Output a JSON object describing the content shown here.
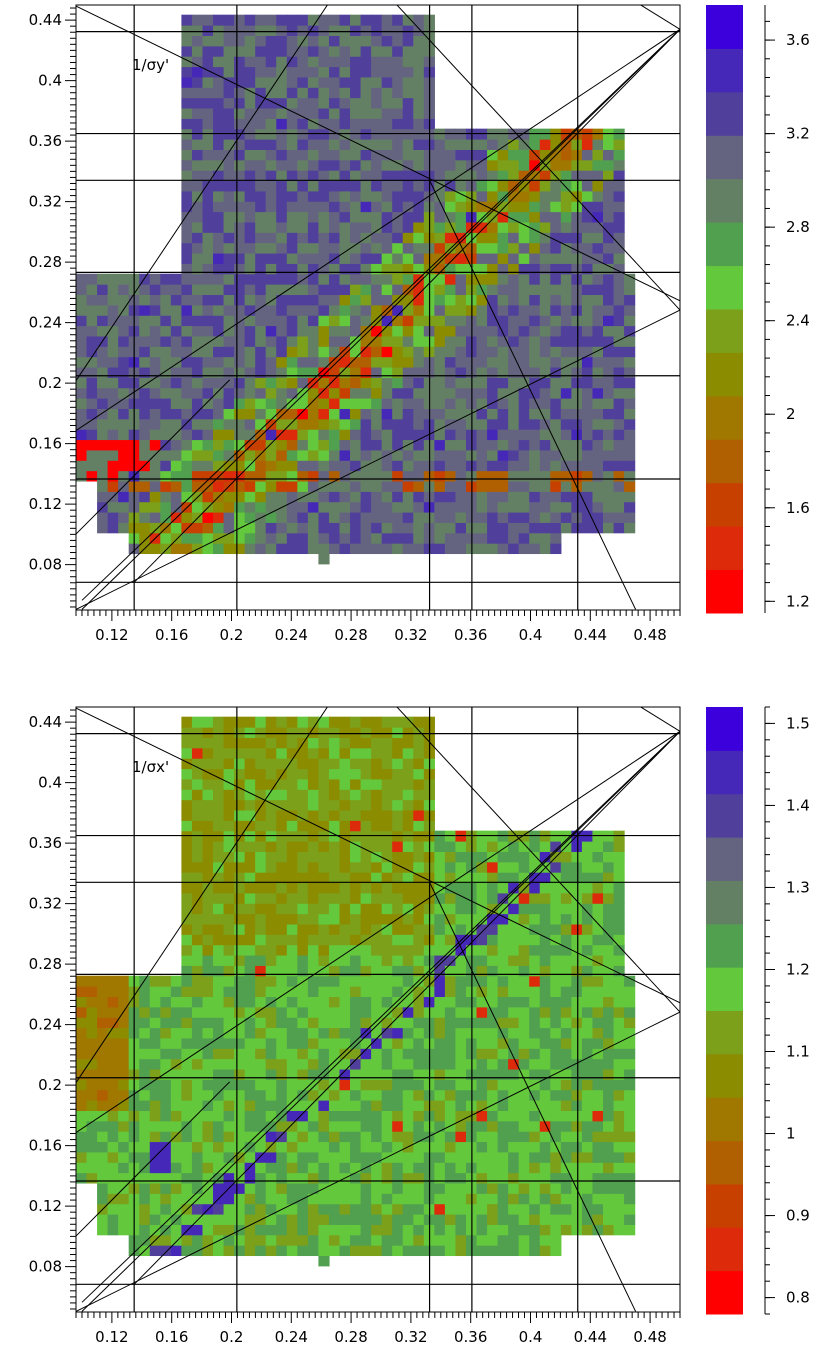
{
  "chart_data": [
    {
      "type": "heatmap",
      "title": "",
      "xlabel": "",
      "ylabel": "",
      "xlim": [
        0.096,
        0.5
      ],
      "ylim": [
        0.05,
        0.45
      ],
      "xticks": [
        "0.12",
        "0.16",
        "0.2",
        "0.24",
        "0.28",
        "0.32",
        "0.36",
        "0.4",
        "0.44",
        "0.48"
      ],
      "yticks": [
        "0.08",
        "0.12",
        "0.16",
        "0.2",
        "0.24",
        "0.28",
        "0.32",
        "0.36",
        "0.4",
        "0.44"
      ],
      "annotation": "1/σy'",
      "colorbar": {
        "range": [
          1.15,
          3.75
        ],
        "ticks": [
          "1.2",
          "1.6",
          "2",
          "2.4",
          "2.8",
          "3.2",
          "3.6"
        ],
        "colors": [
          "#ff0000",
          "#dc2a0a",
          "#c84000",
          "#b06000",
          "#a07800",
          "#8c8c00",
          "#7ca01a",
          "#64c83c",
          "#50a050",
          "#648064",
          "#646480",
          "#50409c",
          "#4628b8",
          "#3c00dc"
        ]
      },
      "grid_x": [
        0.1349,
        0.2036,
        0.3325,
        0.3608,
        0.4316
      ],
      "grid_y": [
        0.0683,
        0.1366,
        0.2049,
        0.2732,
        0.3341,
        0.365,
        0.4324
      ],
      "resonance_lines": [
        [
          [
            0.096,
            0.4493
          ],
          [
            0.5,
            0.2544
          ]
        ],
        [
          [
            0.1,
            0.0564
          ],
          [
            0.5,
            0.4339
          ]
        ],
        [
          [
            0.096,
            0.1686
          ],
          [
            0.5,
            0.4339
          ]
        ],
        [
          [
            0.096,
            0.2016
          ],
          [
            0.2676,
            0.4551
          ]
        ],
        [
          [
            0.096,
            0.1002
          ],
          [
            0.1988,
            0.2022
          ]
        ],
        [
          [
            0.3059,
            0.4551
          ],
          [
            0.5,
            0.2483
          ]
        ],
        [
          [
            0.096,
            0.0504
          ],
          [
            0.5,
            0.2483
          ]
        ],
        [
          [
            0.1,
            0.0504
          ],
          [
            0.5,
            0.4339
          ]
        ],
        [
          [
            0.3325,
            0.3341
          ],
          [
            0.4703,
            0.0504
          ]
        ],
        [
          [
            0.1349,
            0.0683
          ],
          [
            0.5,
            0.4339
          ]
        ],
        [
          [
            0.4654,
            0.4551
          ],
          [
            0.5,
            0.4339
          ]
        ]
      ],
      "z_summary": {
        "dominant_value": 3.1,
        "min": 1.2,
        "max": 3.6,
        "low_values_along": "diagonal resonance line and row near y≈0.13"
      }
    },
    {
      "type": "heatmap",
      "title": "",
      "xlabel": "",
      "ylabel": "",
      "xlim": [
        0.096,
        0.5
      ],
      "ylim": [
        0.05,
        0.45
      ],
      "xticks": [
        "0.12",
        "0.16",
        "0.2",
        "0.24",
        "0.28",
        "0.32",
        "0.36",
        "0.4",
        "0.44",
        "0.48"
      ],
      "yticks": [
        "0.08",
        "0.12",
        "0.16",
        "0.2",
        "0.24",
        "0.28",
        "0.32",
        "0.36",
        "0.4",
        "0.44"
      ],
      "annotation": "1/σx'",
      "colorbar": {
        "range": [
          0.78,
          1.52
        ],
        "ticks": [
          "0.8",
          "0.9",
          "1",
          "1.1",
          "1.2",
          "1.3",
          "1.4",
          "1.5"
        ],
        "colors": [
          "#ff0000",
          "#dc2a0a",
          "#c84000",
          "#b06000",
          "#a07800",
          "#8c8c00",
          "#7ca01a",
          "#64c83c",
          "#50a050",
          "#648064",
          "#646480",
          "#50409c",
          "#4628b8",
          "#3c00dc"
        ]
      },
      "grid_x": [
        0.1349,
        0.2036,
        0.3325,
        0.3608,
        0.4316
      ],
      "grid_y": [
        0.0683,
        0.1366,
        0.2049,
        0.2732,
        0.3341,
        0.365,
        0.4324
      ],
      "resonance_lines": [
        [
          [
            0.096,
            0.4493
          ],
          [
            0.5,
            0.2544
          ]
        ],
        [
          [
            0.1,
            0.0564
          ],
          [
            0.5,
            0.4339
          ]
        ],
        [
          [
            0.096,
            0.1686
          ],
          [
            0.5,
            0.4339
          ]
        ],
        [
          [
            0.096,
            0.2016
          ],
          [
            0.2676,
            0.4551
          ]
        ],
        [
          [
            0.096,
            0.1002
          ],
          [
            0.1988,
            0.2022
          ]
        ],
        [
          [
            0.3059,
            0.4551
          ],
          [
            0.5,
            0.2483
          ]
        ],
        [
          [
            0.096,
            0.0504
          ],
          [
            0.5,
            0.2483
          ]
        ],
        [
          [
            0.1,
            0.0504
          ],
          [
            0.5,
            0.4339
          ]
        ],
        [
          [
            0.3325,
            0.3341
          ],
          [
            0.4703,
            0.0504
          ]
        ],
        [
          [
            0.1349,
            0.0683
          ],
          [
            0.5,
            0.4339
          ]
        ],
        [
          [
            0.4654,
            0.4551
          ],
          [
            0.5,
            0.4339
          ]
        ]
      ],
      "z_summary": {
        "dominant_value": 1.15,
        "min": 0.85,
        "max": 1.5,
        "low_values_along": "left edge near x≈0.12"
      }
    }
  ]
}
